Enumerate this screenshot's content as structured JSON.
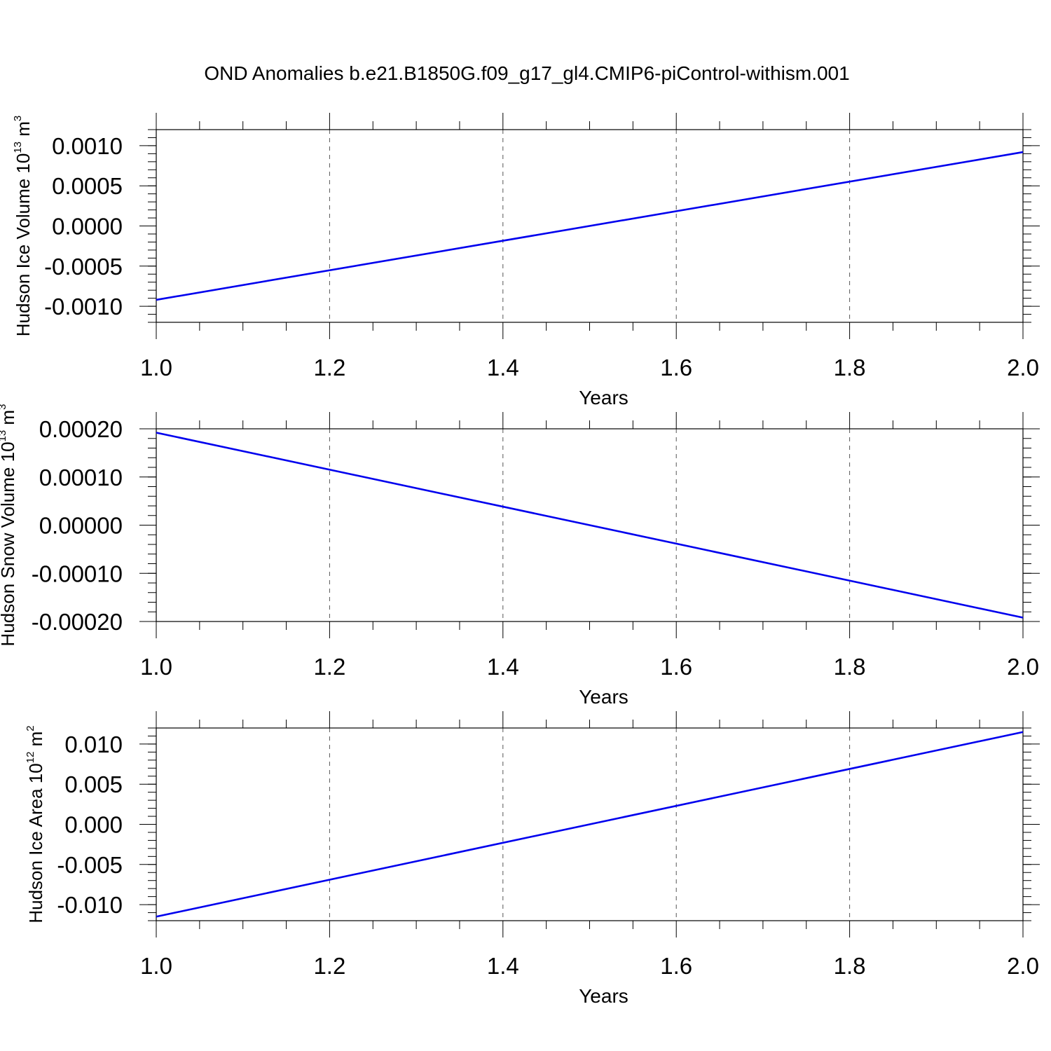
{
  "chart_data": {
    "title": "OND Anomalies b.e21.B1850G.f09_g17_gl4.CMIP6-piControl-withism.001",
    "line_color": "#0000ee",
    "panels": [
      {
        "type": "line",
        "ylabel": {
          "text": "Hudson Ice Volume 10",
          "exponent": "13",
          "unit": " m",
          "unit_exponent": "3"
        },
        "xlabel": "Years",
        "xlim": [
          1.0,
          2.0
        ],
        "ylim": [
          -0.0012,
          0.0012
        ],
        "x_ticks": [
          "1.0",
          "1.2",
          "1.4",
          "1.6",
          "1.8",
          "2.0"
        ],
        "y_ticks": [
          "0.0010",
          "0.0005",
          "0.0000",
          "-0.0005",
          "-0.0010"
        ],
        "series": [
          {
            "x": [
              1.0,
              2.0
            ],
            "y": [
              -0.00092,
              0.00092
            ]
          }
        ]
      },
      {
        "type": "line",
        "ylabel": {
          "text": "Hudson Snow Volume 10",
          "exponent": "13",
          "unit": " m",
          "unit_exponent": "3"
        },
        "xlabel": "Years",
        "xlim": [
          1.0,
          2.0
        ],
        "ylim": [
          -0.0002,
          0.0002
        ],
        "x_ticks": [
          "1.0",
          "1.2",
          "1.4",
          "1.6",
          "1.8",
          "2.0"
        ],
        "y_ticks": [
          "0.00020",
          "0.00010",
          "0.00000",
          "-0.00010",
          "-0.00020"
        ],
        "series": [
          {
            "x": [
              1.0,
              2.0
            ],
            "y": [
              0.000192,
              -0.000192
            ]
          }
        ]
      },
      {
        "type": "line",
        "ylabel": {
          "text": "Hudson Ice Area 10",
          "exponent": "12",
          "unit": " m",
          "unit_exponent": "2"
        },
        "xlabel": "Years",
        "xlim": [
          1.0,
          2.0
        ],
        "ylim": [
          -0.012,
          0.012
        ],
        "x_ticks": [
          "1.0",
          "1.2",
          "1.4",
          "1.6",
          "1.8",
          "2.0"
        ],
        "y_ticks": [
          "0.010",
          "0.005",
          "0.000",
          "-0.005",
          "-0.010"
        ],
        "series": [
          {
            "x": [
              1.0,
              2.0
            ],
            "y": [
              -0.0115,
              0.0115
            ]
          }
        ]
      }
    ]
  }
}
